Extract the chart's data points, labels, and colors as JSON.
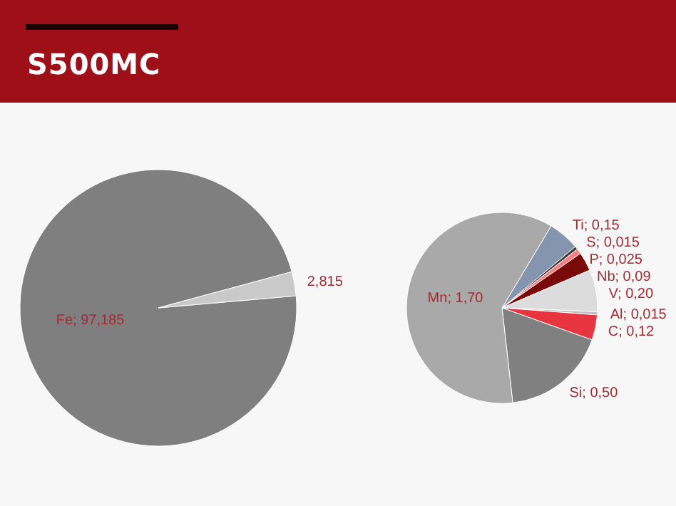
{
  "chart_data": [
    {
      "type": "pie",
      "title": "S500MC",
      "categories": [
        "Fe",
        null
      ],
      "values": [
        97.185,
        2.815
      ],
      "colors": [
        "#7f7f7f",
        "#c9c9c9"
      ],
      "value_labels": [
        "97,185",
        "2,815"
      ]
    },
    {
      "type": "pie",
      "categories": [
        "Ti",
        "S",
        "P",
        "Nb",
        "V",
        "Al",
        "C",
        "Si",
        "Mn"
      ],
      "values": [
        0.15,
        0.015,
        0.025,
        0.09,
        0.2,
        0.015,
        0.12,
        0.5,
        1.7
      ],
      "colors": [
        "#8595ad",
        "#3a3a3a",
        "#ff7c80",
        "#7a0a0a",
        "#dcdcdc",
        "#bdbdbd",
        "#e8343f",
        "#808080",
        "#a9a9a9"
      ],
      "value_labels": [
        "0,15",
        "0,015",
        "0,025",
        "0,09",
        "0,20",
        "0,015",
        "0,12",
        "0,50",
        "1,70"
      ]
    }
  ]
}
